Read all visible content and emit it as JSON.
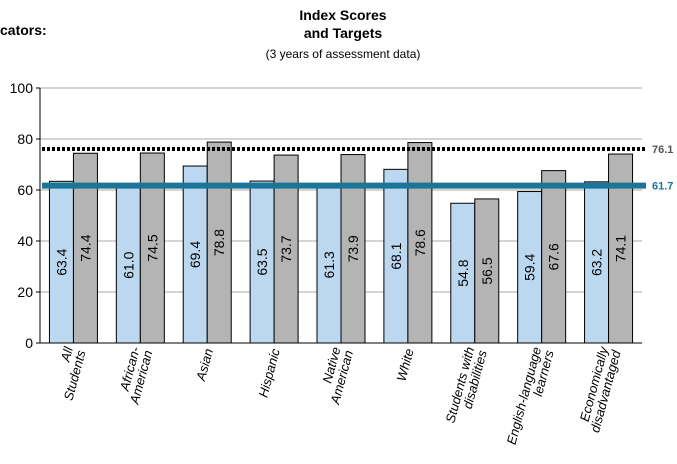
{
  "corner_text": "cators:",
  "chart_data": {
    "type": "bar",
    "title": "Index Scores and Targets",
    "title_lines": [
      "Index Scores",
      "and Targets"
    ],
    "subtitle": "(3 years of assessment data)",
    "categories": [
      [
        "All",
        "Students"
      ],
      [
        "African-",
        "American"
      ],
      [
        "Asian"
      ],
      [
        "Hispanic"
      ],
      [
        "Native",
        "American"
      ],
      [
        "White"
      ],
      [
        "Students with",
        "disabilities"
      ],
      [
        "English-language",
        "learners"
      ],
      [
        "Economically",
        "disadvantaged"
      ]
    ],
    "series": [
      {
        "values": [
          63.4,
          61.0,
          69.4,
          63.5,
          61.3,
          68.1,
          54.8,
          59.4,
          63.2
        ],
        "color": "#bcd8f0"
      },
      {
        "values": [
          74.4,
          74.5,
          78.8,
          73.7,
          73.9,
          78.6,
          56.5,
          67.6,
          74.1
        ],
        "color": "#b4b4b4"
      }
    ],
    "reference_lines": [
      {
        "value": 76.1,
        "label": "76.1",
        "style": "dotted",
        "color": "#000000",
        "label_color": "#555555"
      },
      {
        "value": 61.7,
        "label": "61.7",
        "style": "solid",
        "color": "#1a7596",
        "label_color": "#1a7596"
      }
    ],
    "yticks": [
      0,
      20,
      40,
      60,
      80,
      100
    ],
    "ylim": [
      0,
      100
    ],
    "grid": true,
    "xlabel": "",
    "ylabel": ""
  }
}
